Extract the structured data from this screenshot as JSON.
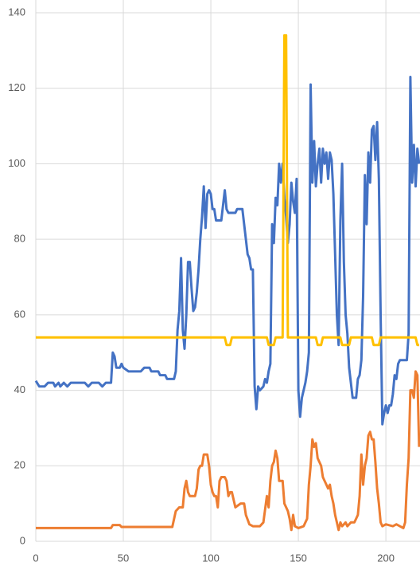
{
  "chart_data": {
    "type": "line",
    "xlim": [
      0,
      219.5
    ],
    "xticks": [
      0,
      50,
      100,
      150,
      200
    ],
    "ylim": [
      0,
      140
    ],
    "yticks": [
      0,
      20,
      40,
      60,
      80,
      100,
      120,
      140
    ],
    "grid": true,
    "series": [
      {
        "color": "#4472c4",
        "x": [
          0,
          2,
          5,
          7,
          10,
          11,
          13,
          14,
          16,
          18,
          20,
          28,
          30,
          32,
          36,
          38,
          40,
          43,
          44,
          45,
          46,
          48,
          49,
          50,
          53,
          60,
          62,
          65,
          66,
          70,
          71,
          74,
          75,
          79,
          80,
          81,
          82,
          83,
          84,
          85,
          86,
          87,
          88,
          89,
          90,
          91,
          92,
          93,
          94,
          95,
          96,
          97,
          98,
          99,
          100,
          101,
          102,
          103,
          106,
          107,
          108,
          109,
          110,
          114,
          115,
          118,
          119,
          120,
          121,
          122,
          123,
          124,
          125,
          126,
          127,
          128,
          130,
          131,
          132,
          133,
          134,
          135,
          136,
          137,
          138,
          139,
          140,
          141,
          142,
          143,
          144,
          145,
          146,
          147,
          148,
          149,
          150,
          151,
          152,
          153,
          154,
          155,
          156,
          157,
          158,
          159,
          160,
          161,
          162,
          163,
          164,
          165,
          166,
          167,
          168,
          169,
          170,
          171,
          172,
          173,
          174,
          175,
          176,
          177,
          178,
          179,
          180,
          181,
          183,
          184,
          185,
          186,
          187,
          188,
          189,
          190,
          191,
          192,
          193,
          194,
          195,
          196,
          197,
          198,
          199,
          200,
          201,
          202,
          203,
          204,
          205,
          206,
          207,
          208,
          212,
          213,
          214,
          215,
          216,
          217,
          218,
          219
        ],
        "values": [
          42.5,
          41,
          41,
          42,
          42,
          41,
          42,
          41,
          42,
          41,
          42,
          42,
          41,
          42,
          42,
          41,
          42,
          42,
          50,
          49,
          46,
          46,
          47,
          46,
          45,
          45,
          46,
          46,
          45,
          45,
          44,
          44,
          43,
          43,
          45,
          56,
          61,
          75,
          56,
          51,
          60,
          74,
          74,
          67,
          61,
          62,
          66,
          72,
          80,
          86,
          94,
          83,
          92,
          93,
          92,
          88,
          88,
          85,
          85,
          89,
          93,
          88,
          87,
          87,
          88,
          88,
          84,
          80,
          76,
          75,
          72,
          72,
          41,
          35,
          41,
          40,
          41,
          43,
          42,
          45,
          47,
          84,
          79,
          91,
          89,
          100,
          95,
          100,
          91,
          86,
          79,
          84,
          95,
          90,
          87,
          96,
          40,
          33,
          38,
          40,
          42,
          45,
          50,
          121,
          95,
          106,
          94,
          100,
          104,
          95,
          104,
          100,
          103,
          96,
          103,
          101,
          92,
          76,
          60,
          52,
          85,
          100,
          74,
          60,
          55,
          46,
          42,
          38,
          38,
          43,
          44,
          48,
          65,
          97,
          84,
          103,
          95,
          109,
          110,
          101,
          111,
          96,
          60,
          31,
          34,
          36,
          34,
          36,
          36,
          39,
          44,
          43,
          47,
          48,
          48,
          55,
          123,
          95,
          105,
          94,
          104,
          100
        ]
      },
      {
        "color": "#ed7d31",
        "x": [
          0,
          43,
          44,
          48,
          49,
          78,
          80,
          82,
          84,
          85,
          86,
          87,
          88,
          91,
          92,
          93,
          94,
          95,
          96,
          98,
          99,
          100,
          101,
          102,
          103,
          104,
          105,
          106,
          108,
          109,
          110,
          111,
          112,
          114,
          117,
          119,
          120,
          122,
          124,
          128,
          130,
          132,
          133,
          134,
          135,
          136,
          137,
          138,
          139,
          141,
          142,
          144,
          145,
          146,
          147,
          148,
          150,
          153,
          155,
          156,
          157,
          158,
          159,
          160,
          161,
          162,
          163,
          164,
          165,
          166,
          167,
          168,
          169,
          170,
          171,
          172,
          173,
          174,
          175,
          177,
          178,
          180,
          182,
          183,
          184,
          185,
          186,
          187,
          188,
          189,
          190,
          191,
          192,
          193,
          194,
          195,
          196,
          197,
          198,
          200,
          204,
          206,
          208,
          210,
          211,
          212,
          213,
          214,
          215,
          216,
          217,
          218,
          219
        ],
        "values": [
          3.5,
          3.5,
          4.3,
          4.3,
          3.8,
          3.8,
          8,
          9,
          9,
          14,
          16,
          13,
          12,
          12,
          14,
          19,
          20,
          20,
          23,
          23,
          20,
          15,
          13,
          12,
          12,
          9,
          16,
          17,
          17,
          16,
          12,
          13,
          13,
          9,
          10,
          10,
          7,
          4.5,
          4,
          4,
          5,
          12,
          9,
          16,
          20,
          21,
          24,
          22,
          16,
          16,
          10,
          8,
          6,
          3,
          7,
          4,
          3.5,
          4,
          6,
          15,
          20,
          27,
          25,
          26,
          22,
          21,
          20,
          17,
          16,
          15,
          14,
          15,
          12,
          10,
          7,
          5,
          3,
          5,
          4,
          5,
          4,
          5,
          5,
          6,
          7,
          12,
          23,
          15,
          20,
          22,
          28,
          29,
          27,
          27,
          21,
          14,
          10,
          5,
          4,
          4.5,
          4,
          4.5,
          4,
          3.5,
          5,
          15,
          22,
          40,
          40,
          38,
          45,
          44,
          25
        ]
      },
      {
        "color": "#ffc000",
        "x": [
          0,
          108,
          109,
          111,
          112,
          132,
          133,
          136,
          137,
          141,
          142,
          143,
          144,
          160,
          161,
          163,
          164,
          174,
          175,
          179,
          180,
          192,
          193,
          196,
          197,
          217,
          218,
          219
        ],
        "values": [
          54,
          54,
          52,
          52,
          54,
          54,
          52,
          52,
          54,
          54,
          134,
          134,
          54,
          54,
          52,
          52,
          54,
          54,
          52,
          52,
          54,
          54,
          52,
          52,
          54,
          54,
          52,
          52
        ]
      }
    ]
  }
}
